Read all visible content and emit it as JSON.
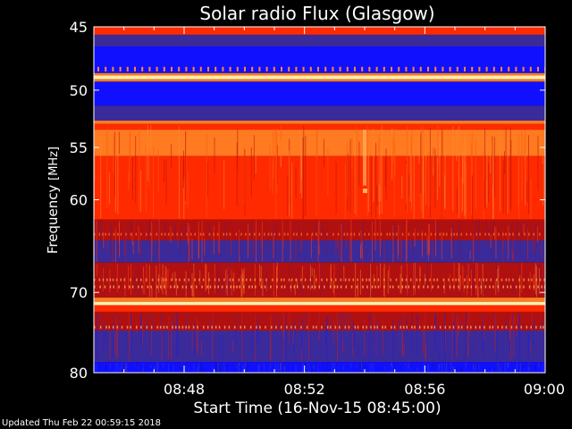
{
  "chart_data": {
    "type": "heatmap",
    "title": "Solar radio Flux (Glasgow)",
    "xlabel": "Start Time (16-Nov-15 08:45:00)",
    "ylabel_main": "Frequency ",
    "ylabel_unit": "MHz",
    "x_range": [
      "08:45",
      "09:00"
    ],
    "x_ticks": [
      "08:48",
      "08:52",
      "08:56",
      "09:00"
    ],
    "y_range": [
      45,
      80
    ],
    "y_ticks": [
      45,
      50,
      55,
      60,
      70,
      80
    ],
    "y_scale": "log",
    "colors": {
      "background": "#000000",
      "low": "#1010ff",
      "mid_low": "#3a2a9a",
      "mid": "#b01010",
      "high": "#ff2a00",
      "very_high": "#ff7a20",
      "peak": "#fff0b0"
    }
  },
  "footer": {
    "updated": "Updated Thu Feb 22 00:59:15 2018"
  }
}
